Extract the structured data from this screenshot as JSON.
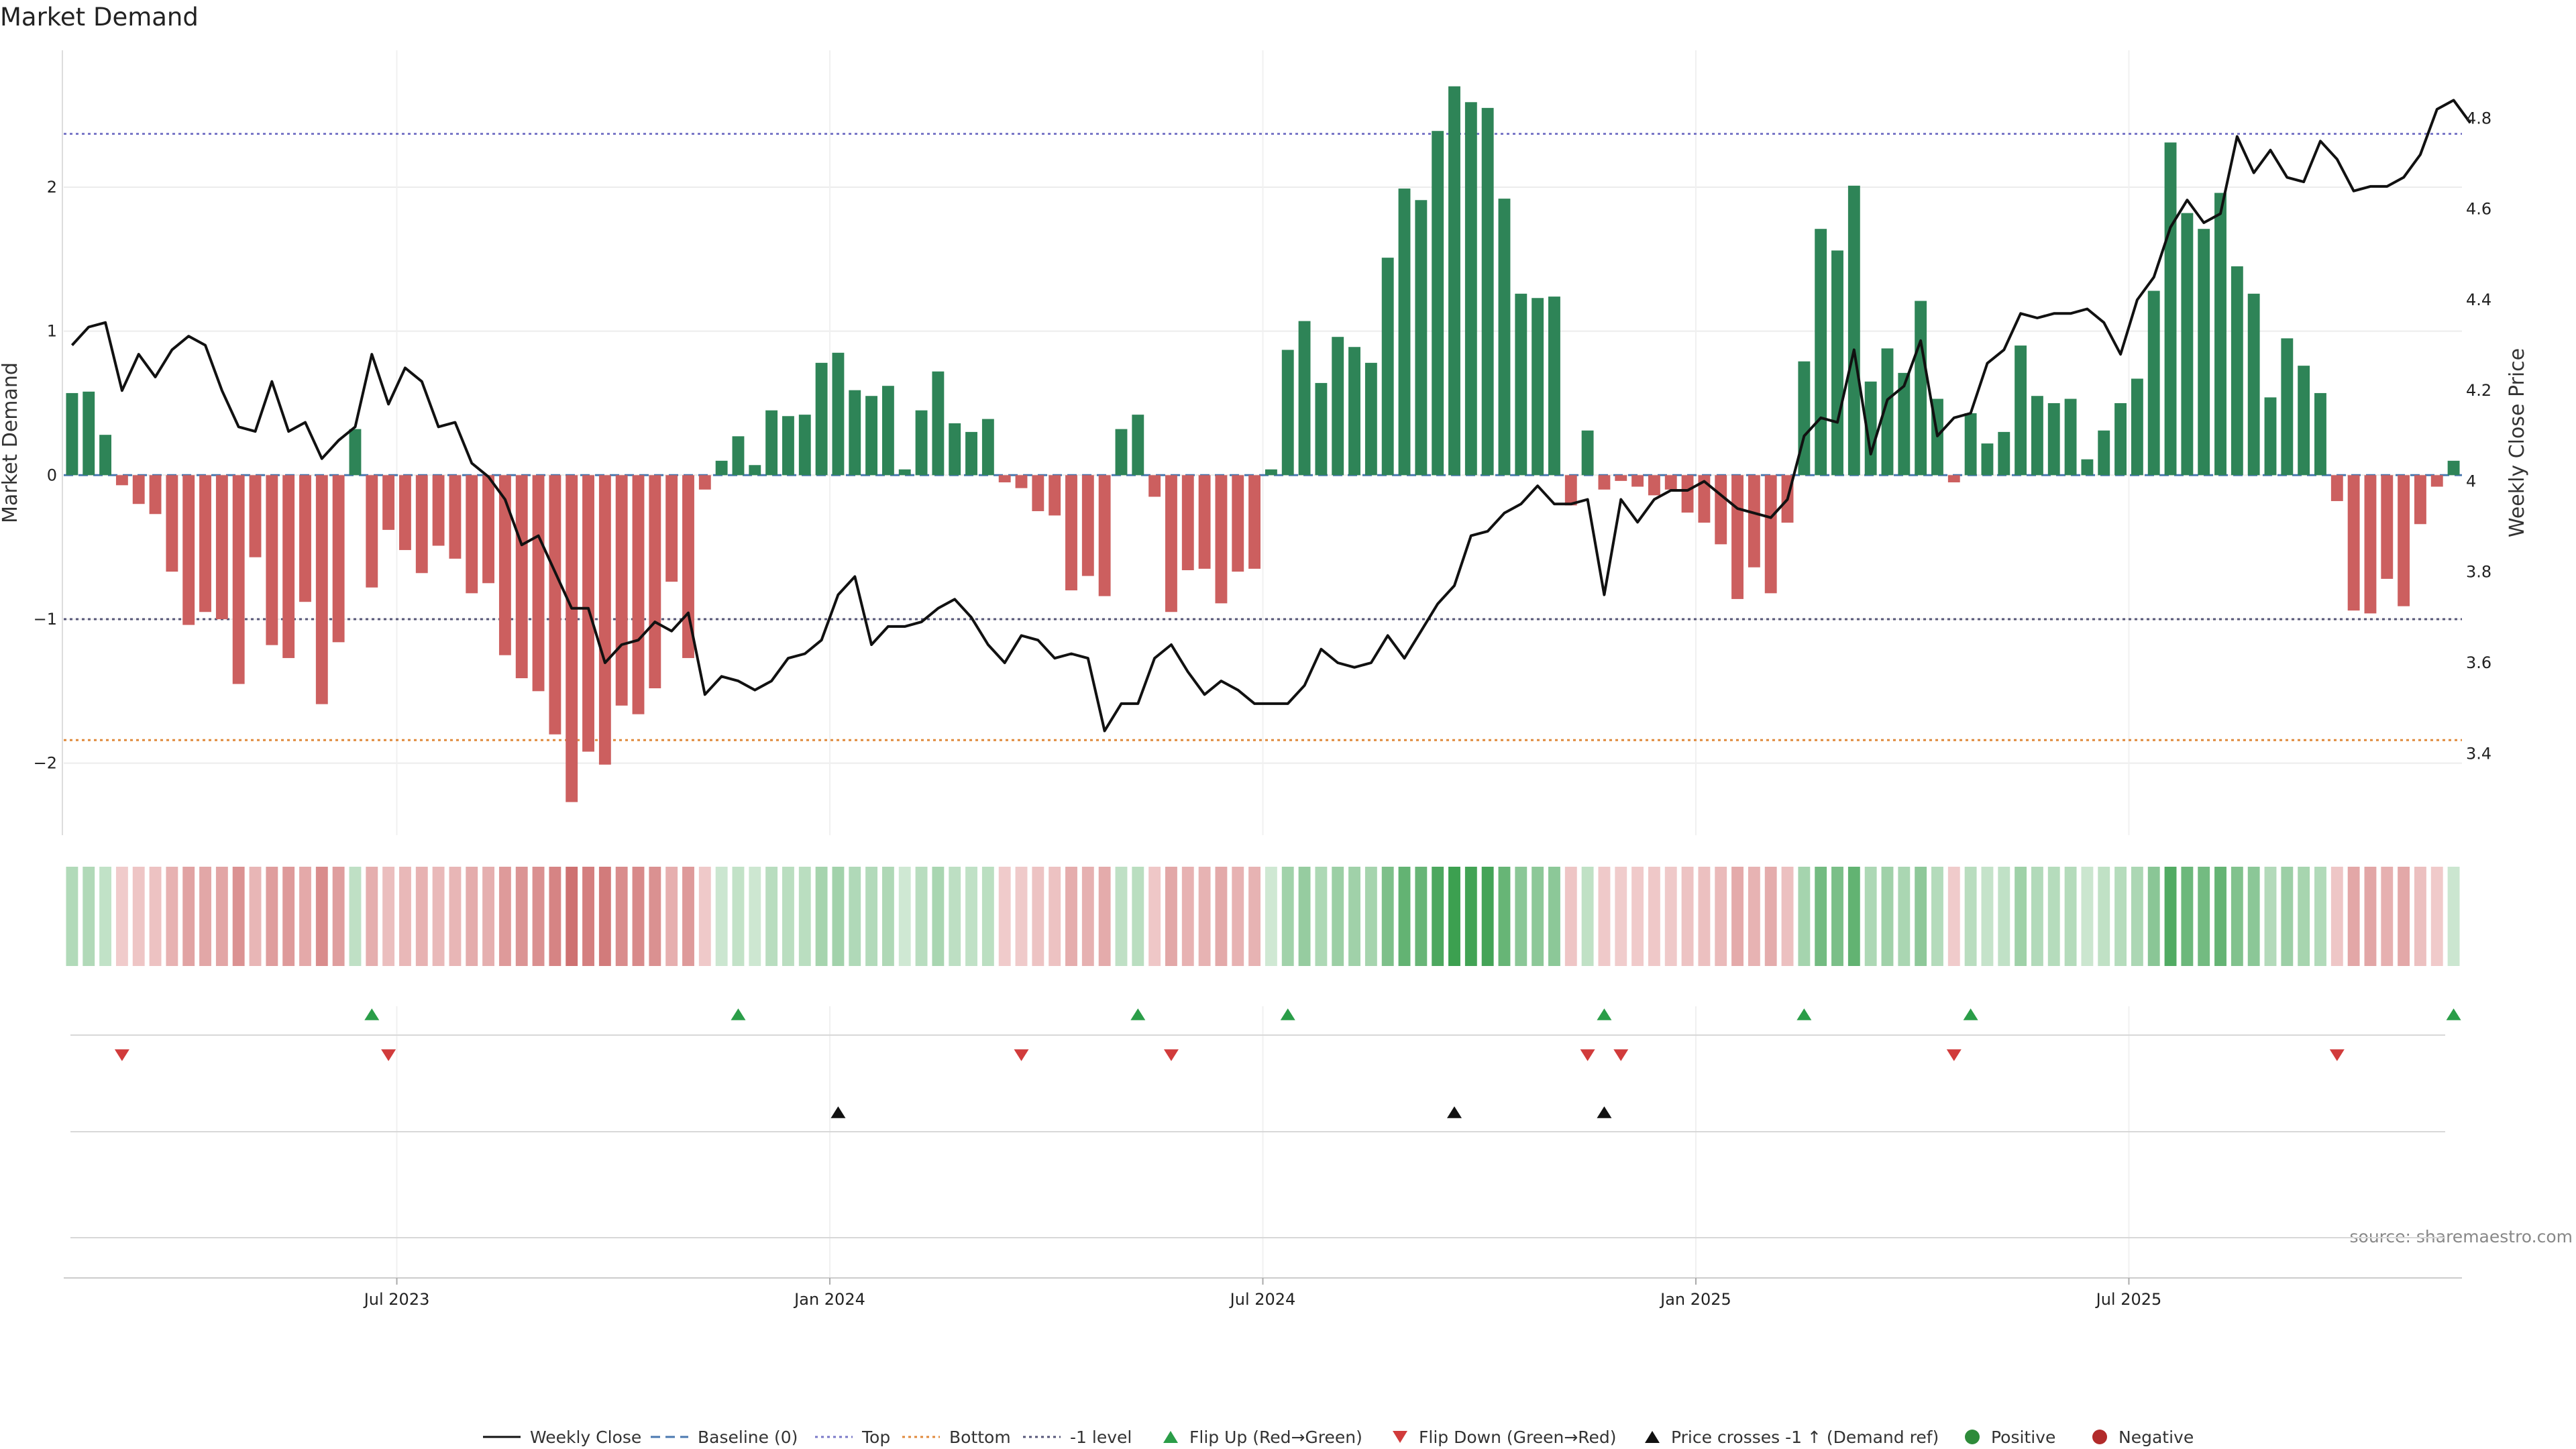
{
  "chart_data": {
    "type": "bar",
    "title": "Market Demand",
    "ylabel_left": "Market Demand",
    "ylabel_right": "Weekly Close Price",
    "source": "source: sharemaestro.com",
    "ylim_left": [
      -2.5,
      2.95
    ],
    "ylim_right": [
      3.22,
      4.95
    ],
    "yticks_left": [
      {
        "v": 2,
        "label": "2"
      },
      {
        "v": 1,
        "label": "1"
      },
      {
        "v": 0,
        "label": "0"
      },
      {
        "v": -1,
        "label": "−1"
      },
      {
        "v": -2,
        "label": "−2"
      }
    ],
    "yticks_right": [
      {
        "v": 4.8,
        "label": "4.8"
      },
      {
        "v": 4.6,
        "label": "4.6"
      },
      {
        "v": 4.4,
        "label": "4.4"
      },
      {
        "v": 4.2,
        "label": "4.2"
      },
      {
        "v": 4.0,
        "label": "4"
      },
      {
        "v": 3.8,
        "label": "3.8"
      },
      {
        "v": 3.6,
        "label": "3.6"
      },
      {
        "v": 3.4,
        "label": "3.4"
      }
    ],
    "xticks": [
      {
        "week": 20,
        "label": "Jul 2023"
      },
      {
        "week": 46,
        "label": "Jan 2024"
      },
      {
        "week": 72,
        "label": "Jul 2024"
      },
      {
        "week": 98,
        "label": "Jan 2025"
      },
      {
        "week": 124,
        "label": "Jul 2025"
      }
    ],
    "reference_lines": {
      "baseline": 0,
      "top": 2.37,
      "bottom": -1.84,
      "minus_one": -1
    },
    "demand": [
      0.57,
      0.58,
      0.28,
      -0.07,
      -0.2,
      -0.27,
      -0.67,
      -1.04,
      -0.95,
      -1.0,
      -1.45,
      -0.57,
      -1.18,
      -1.27,
      -0.88,
      -1.59,
      -1.16,
      0.32,
      -0.78,
      -0.38,
      -0.52,
      -0.68,
      -0.49,
      -0.58,
      -0.82,
      -0.75,
      -1.25,
      -1.41,
      -1.5,
      -1.8,
      -2.27,
      -1.92,
      -2.01,
      -1.6,
      -1.66,
      -1.48,
      -0.74,
      -1.27,
      -0.1,
      0.1,
      0.27,
      0.07,
      0.45,
      0.41,
      0.42,
      0.78,
      0.85,
      0.59,
      0.55,
      0.62,
      0.04,
      0.45,
      0.72,
      0.36,
      0.3,
      0.39,
      -0.05,
      -0.09,
      -0.25,
      -0.28,
      -0.8,
      -0.7,
      -0.84,
      0.32,
      0.42,
      -0.15,
      -0.95,
      -0.66,
      -0.65,
      -0.89,
      -0.67,
      -0.65,
      0.04,
      0.87,
      1.07,
      0.64,
      0.96,
      0.89,
      0.78,
      1.51,
      1.99,
      1.91,
      2.39,
      2.7,
      2.59,
      2.55,
      1.92,
      1.26,
      1.23,
      1.24,
      -0.21,
      0.31,
      -0.1,
      -0.04,
      -0.08,
      -0.14,
      -0.1,
      -0.26,
      -0.33,
      -0.48,
      -0.86,
      -0.64,
      -0.82,
      -0.33,
      0.79,
      1.71,
      1.56,
      2.01,
      0.65,
      0.88,
      0.71,
      1.21,
      0.53,
      -0.05,
      0.43,
      0.22,
      0.3,
      0.9,
      0.55,
      0.5,
      0.53,
      0.11,
      0.31,
      0.5,
      0.67,
      1.28,
      2.31,
      1.82,
      1.71,
      1.96,
      1.45,
      1.26,
      0.54,
      0.95,
      0.76,
      0.57,
      -0.18,
      -0.94,
      -0.96,
      -0.72,
      -0.91,
      -0.34,
      -0.08,
      0.1
    ],
    "weekly_close": [
      4.3,
      4.34,
      4.35,
      4.2,
      4.28,
      4.23,
      4.29,
      4.32,
      4.3,
      4.2,
      4.12,
      4.11,
      4.22,
      4.11,
      4.13,
      4.05,
      4.09,
      4.12,
      4.28,
      4.17,
      4.25,
      4.22,
      4.12,
      4.13,
      4.04,
      4.01,
      3.96,
      3.86,
      3.88,
      3.8,
      3.72,
      3.72,
      3.6,
      3.64,
      3.65,
      3.69,
      3.67,
      3.71,
      3.53,
      3.57,
      3.56,
      3.54,
      3.56,
      3.61,
      3.62,
      3.65,
      3.75,
      3.79,
      3.64,
      3.68,
      3.68,
      3.69,
      3.72,
      3.74,
      3.7,
      3.64,
      3.6,
      3.66,
      3.65,
      3.61,
      3.62,
      3.61,
      3.45,
      3.51,
      3.51,
      3.61,
      3.64,
      3.58,
      3.53,
      3.56,
      3.54,
      3.51,
      3.51,
      3.51,
      3.55,
      3.63,
      3.6,
      3.59,
      3.6,
      3.66,
      3.61,
      3.67,
      3.73,
      3.77,
      3.88,
      3.89,
      3.93,
      3.95,
      3.99,
      3.95,
      3.95,
      3.96,
      3.75,
      3.96,
      3.91,
      3.96,
      3.98,
      3.98,
      4.0,
      3.97,
      3.94,
      3.93,
      3.92,
      3.96,
      4.1,
      4.14,
      4.13,
      4.29,
      4.06,
      4.18,
      4.21,
      4.31,
      4.1,
      4.14,
      4.15,
      4.26,
      4.29,
      4.37,
      4.36,
      4.37,
      4.37,
      4.38,
      4.35,
      4.28,
      4.4,
      4.45,
      4.56,
      4.62,
      4.57,
      4.59,
      4.76,
      4.68,
      4.73,
      4.67,
      4.66,
      4.75,
      4.71,
      4.64,
      4.65,
      4.65,
      4.67,
      4.72,
      4.82,
      4.84,
      4.79
    ],
    "flip_up_weeks": [
      18,
      40,
      64,
      73,
      92,
      104,
      114,
      143
    ],
    "flip_down_weeks": [
      3,
      19,
      57,
      66,
      91,
      93,
      113,
      136
    ],
    "price_cross_weeks": [
      46,
      83,
      92
    ],
    "legend": [
      {
        "key": "weekly_close",
        "label": "Weekly Close",
        "color": "#111111"
      },
      {
        "key": "baseline",
        "label": "Baseline (0)",
        "color": "#4a78b0"
      },
      {
        "key": "top",
        "label": "Top",
        "color": "#7a78c8"
      },
      {
        "key": "bottom",
        "label": "Bottom",
        "color": "#e08a3c"
      },
      {
        "key": "minus_one",
        "label": "-1 level",
        "color": "#555577"
      },
      {
        "key": "flip_up",
        "label": "Flip Up (Red→Green)",
        "color": "#2a9d48"
      },
      {
        "key": "flip_down",
        "label": "Flip Down (Green→Red)",
        "color": "#d13b3b"
      },
      {
        "key": "price_cross",
        "label": "Price crosses -1 ↑ (Demand ref)",
        "color": "#111111"
      },
      {
        "key": "positive",
        "label": "Positive",
        "color": "#2e8b3a"
      },
      {
        "key": "negative",
        "label": "Negative",
        "color": "#b22a2a"
      }
    ],
    "colors": {
      "bar_positive": "#2e8457",
      "bar_negative": "#cc5f5f",
      "grid": "#ececec"
    }
  }
}
